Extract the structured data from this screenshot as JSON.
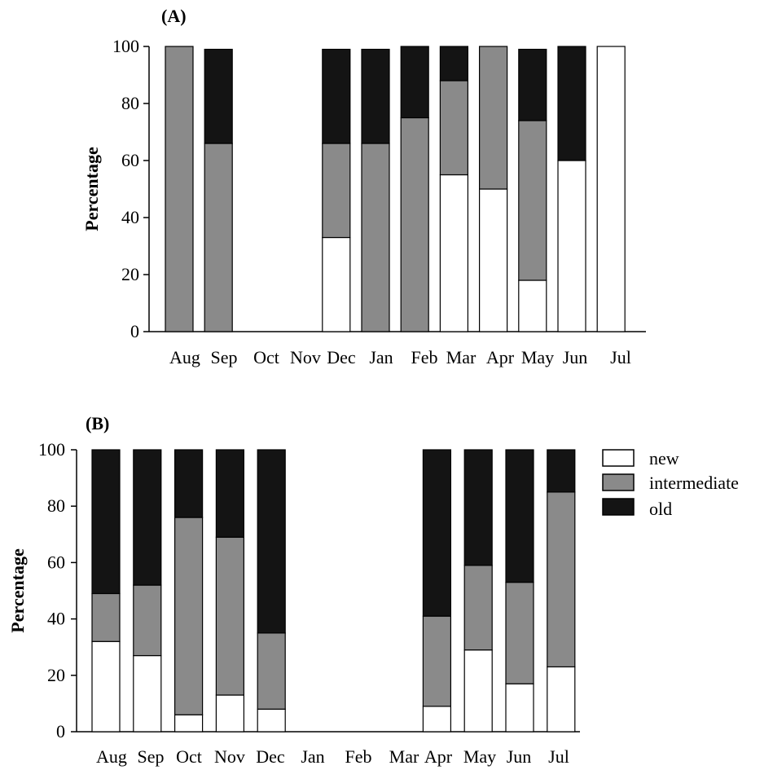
{
  "legend": {
    "items": [
      {
        "label": "new",
        "color": "#ffffff"
      },
      {
        "label": "intermediate",
        "color": "#8a8a8a"
      },
      {
        "label": "old",
        "color": "#141414"
      }
    ]
  },
  "chart_data": [
    {
      "type": "bar",
      "stacked": true,
      "title": "(A)",
      "ylabel": "Percentage",
      "ylim": [
        0,
        100
      ],
      "yticks": [
        "0",
        "20",
        "40",
        "60",
        "80",
        "100"
      ],
      "categories": [
        "Aug",
        "Sep",
        "Oct",
        "Nov",
        "Dec",
        "Jan",
        "Feb",
        "Mar",
        "Apr",
        "May",
        "Jun",
        "Jul"
      ],
      "series": [
        {
          "name": "new",
          "color": "#ffffff",
          "values": [
            0,
            0,
            0,
            0,
            33,
            0,
            0,
            55,
            50,
            18,
            60,
            100
          ]
        },
        {
          "name": "intermediate",
          "color": "#8a8a8a",
          "values": [
            100,
            66,
            0,
            0,
            33,
            66,
            75,
            33,
            50,
            56,
            0,
            0
          ]
        },
        {
          "name": "old",
          "color": "#141414",
          "values": [
            0,
            33,
            0,
            0,
            33,
            33,
            25,
            12,
            0,
            25,
            40,
            0
          ]
        }
      ]
    },
    {
      "type": "bar",
      "stacked": true,
      "title": "(B)",
      "ylabel": "Percentage",
      "ylim": [
        0,
        100
      ],
      "yticks": [
        "0",
        "20",
        "40",
        "60",
        "80",
        "100"
      ],
      "categories": [
        "Aug",
        "Sep",
        "Oct",
        "Nov",
        "Dec",
        "Jan",
        "Feb",
        "Mar",
        "Apr",
        "May",
        "Jun",
        "Jul"
      ],
      "series": [
        {
          "name": "new",
          "color": "#ffffff",
          "values": [
            32,
            27,
            6,
            13,
            8,
            0,
            0,
            0,
            9,
            29,
            17,
            23
          ]
        },
        {
          "name": "intermediate",
          "color": "#8a8a8a",
          "values": [
            17,
            25,
            70,
            56,
            27,
            0,
            0,
            0,
            32,
            30,
            36,
            62
          ]
        },
        {
          "name": "old",
          "color": "#141414",
          "values": [
            51,
            48,
            24,
            31,
            65,
            0,
            0,
            0,
            59,
            41,
            47,
            15
          ]
        }
      ]
    }
  ]
}
